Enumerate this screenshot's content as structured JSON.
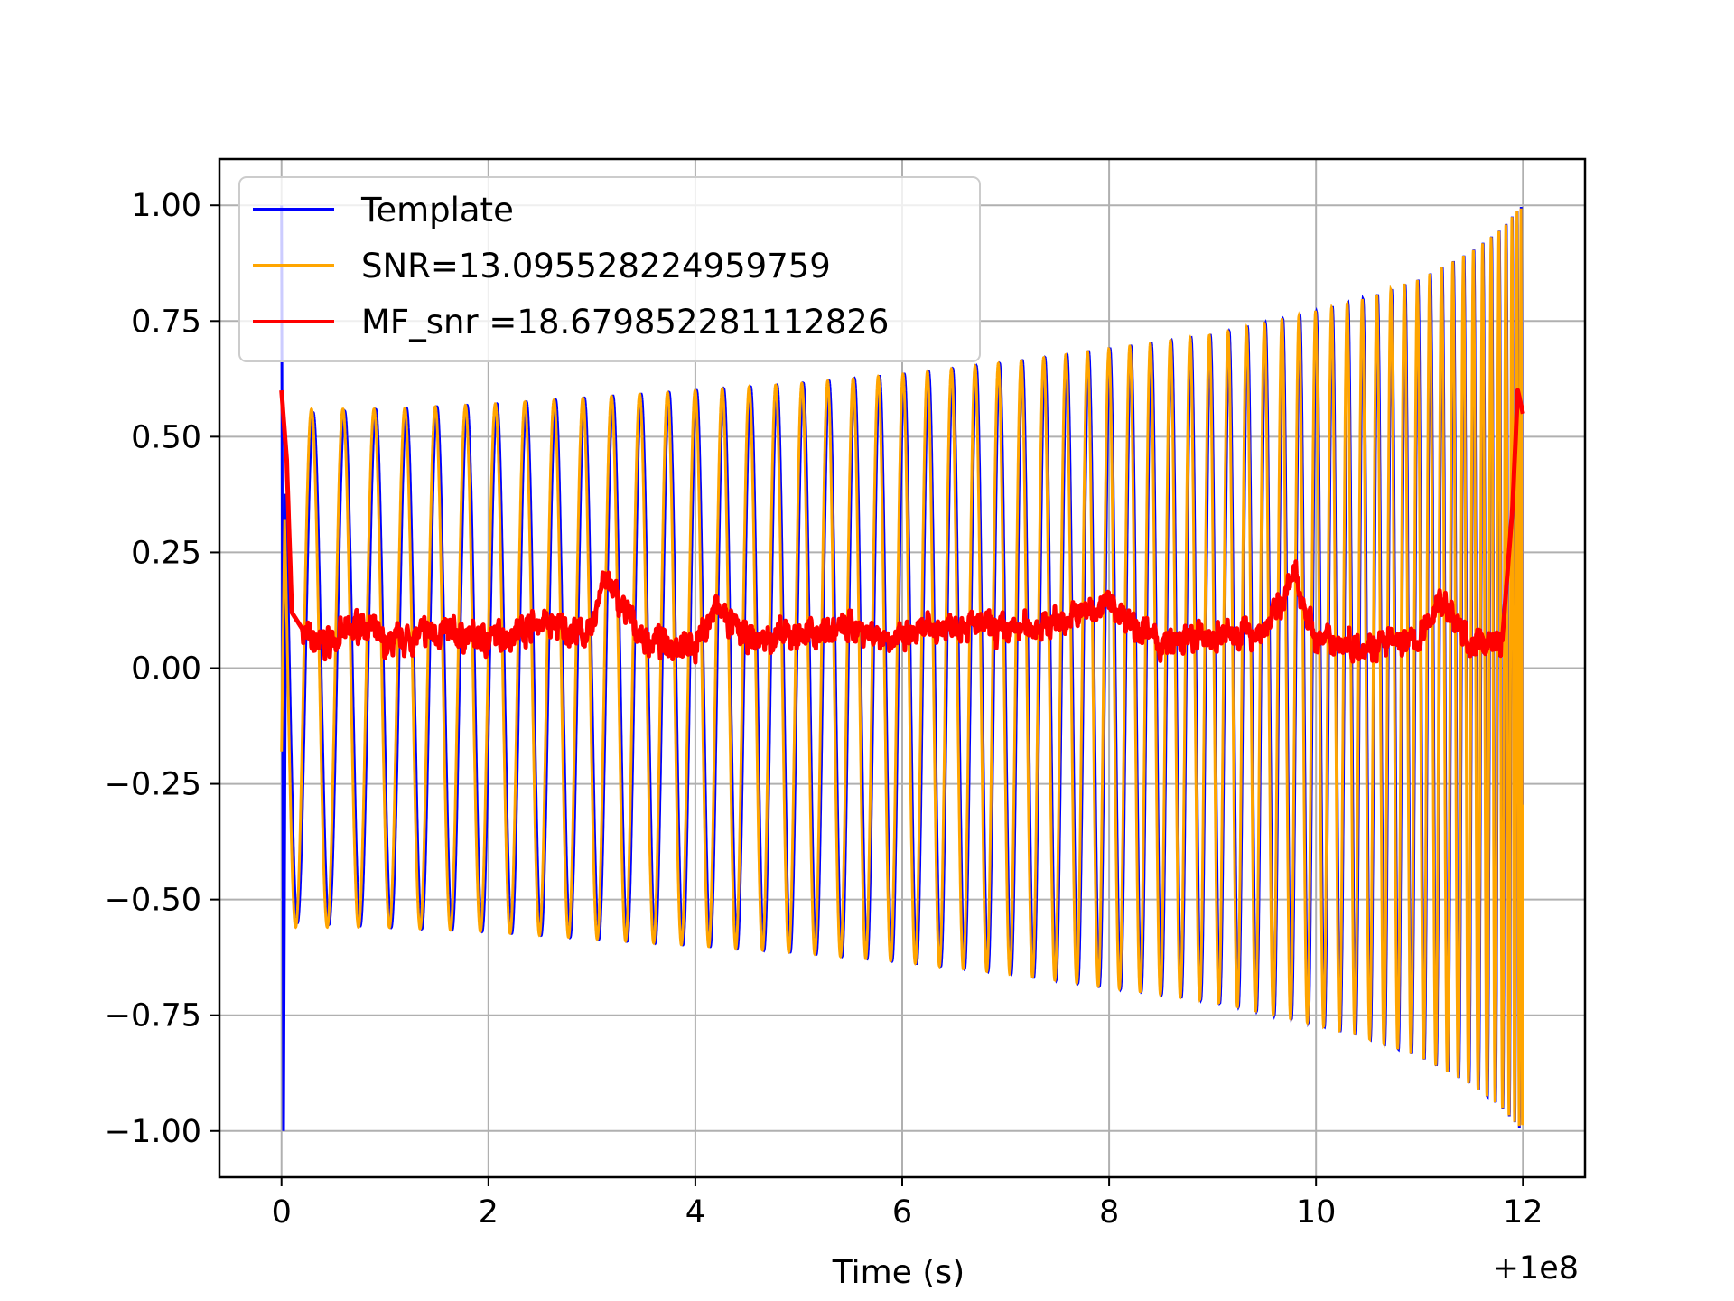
{
  "chart_data": {
    "type": "line",
    "title": "",
    "xlabel": "Time (s)",
    "ylabel": "",
    "x_offset_label": "+1e8",
    "xlim": [
      -0.6,
      12.6
    ],
    "ylim": [
      -1.1,
      1.1
    ],
    "x_ticks": [
      0,
      2,
      4,
      6,
      8,
      10,
      12
    ],
    "x_tick_labels": [
      "0",
      "2",
      "4",
      "6",
      "8",
      "10",
      "12"
    ],
    "y_ticks": [
      1.0,
      0.75,
      0.5,
      0.25,
      0.0,
      -0.25,
      -0.5,
      -0.75,
      -1.0
    ],
    "y_tick_labels": [
      "1.00",
      "0.75",
      "0.50",
      "0.25",
      "0.00",
      "−0.25",
      "−0.50",
      "−0.75",
      "−1.00"
    ],
    "grid": true,
    "legend_position": "top-left",
    "series": [
      {
        "name": "Template",
        "color": "#0000ff",
        "description_of_shape": "chirp",
        "x": [
          0.0,
          0.02,
          0.04,
          0.1,
          1,
          2,
          3,
          4,
          5,
          6,
          7,
          8,
          9,
          10,
          10.5,
          11,
          11.5,
          11.8,
          11.95,
          12.0
        ],
        "envelope": [
          1.0,
          -1.0,
          0.55,
          0.55,
          0.56,
          0.57,
          0.585,
          0.6,
          0.615,
          0.635,
          0.66,
          0.69,
          0.72,
          0.77,
          0.8,
          0.84,
          0.9,
          0.95,
          0.99,
          1.0
        ]
      },
      {
        "name": "SNR=13.095528224959759",
        "color": "#ffa500",
        "x": [
          0.0,
          0.1,
          1,
          2,
          3,
          4,
          5,
          6,
          7,
          8,
          9,
          10,
          10.5,
          11,
          11.5,
          11.8,
          11.95,
          12.0
        ],
        "envelope": [
          -0.18,
          0.55,
          0.56,
          0.57,
          0.585,
          0.6,
          0.615,
          0.635,
          0.66,
          0.69,
          0.72,
          0.77,
          0.8,
          0.84,
          0.9,
          0.95,
          0.99,
          1.0
        ]
      },
      {
        "name": "MF_snr =18.679852281112826",
        "color": "#ff0000",
        "x": [
          0.0,
          0.05,
          0.1,
          0.3,
          0.5,
          0.8,
          1.0,
          1.5,
          2.0,
          2.5,
          3.0,
          3.1,
          3.5,
          4.0,
          4.2,
          4.5,
          5.0,
          5.5,
          6.0,
          6.5,
          7.0,
          7.5,
          8.0,
          8.5,
          9.0,
          9.5,
          9.8,
          10.0,
          10.5,
          11.0,
          11.2,
          11.5,
          11.8,
          11.9,
          11.95,
          12.0
        ],
        "y": [
          0.6,
          0.45,
          0.12,
          0.05,
          0.06,
          0.1,
          0.05,
          0.08,
          0.06,
          0.1,
          0.07,
          0.2,
          0.06,
          0.05,
          0.13,
          0.06,
          0.07,
          0.09,
          0.06,
          0.1,
          0.08,
          0.1,
          0.14,
          0.05,
          0.07,
          0.08,
          0.2,
          0.06,
          0.05,
          0.06,
          0.15,
          0.05,
          0.06,
          0.35,
          0.6,
          0.55
        ]
      }
    ]
  }
}
